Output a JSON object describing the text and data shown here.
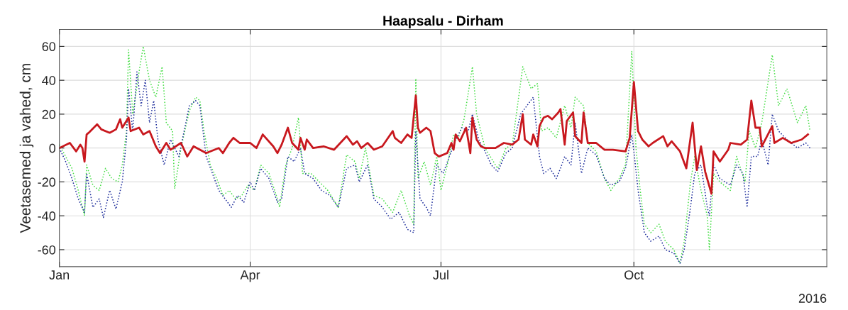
{
  "chart_data": {
    "type": "line",
    "title": "Haapsalu - Dirham",
    "ylabel": "Veetasemed ja vahed, cm",
    "xlim": [
      "2016-01-01",
      "2017-01-01"
    ],
    "ylim": [
      -70,
      70
    ],
    "yticks": [
      -60,
      -40,
      -20,
      0,
      20,
      40,
      60
    ],
    "xticks": [
      {
        "value": "2016-01-01",
        "label": "Jan"
      },
      {
        "value": "2016-04-01",
        "label": "Apr"
      },
      {
        "value": "2016-07-01",
        "label": "Jul"
      },
      {
        "value": "2016-10-01",
        "label": "Oct"
      }
    ],
    "annotations": [
      "2016"
    ],
    "grid": true,
    "marker": "none",
    "series": [
      {
        "color": "#44dd44",
        "line_style": "dotted",
        "x": [
          "2016-01-01",
          "2016-01-04",
          "2016-01-07",
          "2016-01-10",
          "2016-01-13",
          "2016-01-14",
          "2016-01-17",
          "2016-01-20",
          "2016-01-23",
          "2016-01-26",
          "2016-01-29",
          "2016-01-31",
          "2016-02-02",
          "2016-02-03",
          "2016-02-05",
          "2016-02-08",
          "2016-02-10",
          "2016-02-13",
          "2016-02-16",
          "2016-02-19",
          "2016-02-21",
          "2016-02-24",
          "2016-02-25",
          "2016-02-28",
          "2016-03-03",
          "2016-03-06",
          "2016-03-08",
          "2016-03-10",
          "2016-03-13",
          "2016-03-16",
          "2016-03-19",
          "2016-03-22",
          "2016-03-25",
          "2016-03-28",
          "2016-03-31",
          "2016-04-03",
          "2016-04-06",
          "2016-04-10",
          "2016-04-14",
          "2016-04-15",
          "2016-04-18",
          "2016-04-21",
          "2016-04-24",
          "2016-04-26",
          "2016-04-30",
          "2016-05-04",
          "2016-05-08",
          "2016-05-13",
          "2016-05-17",
          "2016-05-21",
          "2016-05-23",
          "2016-05-26",
          "2016-05-30",
          "2016-06-03",
          "2016-06-08",
          "2016-06-12",
          "2016-06-16",
          "2016-06-18",
          "2016-06-19",
          "2016-06-20",
          "2016-06-23",
          "2016-06-26",
          "2016-06-29",
          "2016-07-01",
          "2016-07-04",
          "2016-07-07",
          "2016-07-09",
          "2016-07-12",
          "2016-07-16",
          "2016-07-18",
          "2016-07-22",
          "2016-07-25",
          "2016-07-28",
          "2016-08-01",
          "2016-08-04",
          "2016-08-09",
          "2016-08-13",
          "2016-08-16",
          "2016-08-18",
          "2016-08-21",
          "2016-08-25",
          "2016-08-29",
          "2016-09-01",
          "2016-09-03",
          "2016-09-07",
          "2016-09-09",
          "2016-09-13",
          "2016-09-17",
          "2016-09-20",
          "2016-09-24",
          "2016-09-27",
          "2016-09-30",
          "2016-10-02",
          "2016-10-04",
          "2016-10-06",
          "2016-10-09",
          "2016-10-13",
          "2016-10-16",
          "2016-10-20",
          "2016-10-23",
          "2016-10-25",
          "2016-10-28",
          "2016-10-30",
          "2016-11-02",
          "2016-11-05",
          "2016-11-06",
          "2016-11-08",
          "2016-11-11",
          "2016-11-16",
          "2016-11-19",
          "2016-11-23",
          "2016-11-25",
          "2016-11-28",
          "2016-12-01",
          "2016-12-06",
          "2016-12-09",
          "2016-12-13",
          "2016-12-18",
          "2016-12-22",
          "2016-12-24"
        ],
        "values": [
          2,
          -5,
          -12,
          -25,
          -40,
          -10,
          -22,
          -25,
          -12,
          -18,
          -20,
          -10,
          10,
          58,
          20,
          45,
          60,
          40,
          30,
          48,
          15,
          10,
          -24,
          0,
          22,
          30,
          28,
          10,
          -10,
          -18,
          -28,
          -25,
          -30,
          -28,
          -22,
          -25,
          -10,
          -15,
          -30,
          -35,
          -10,
          0,
          18,
          -15,
          -15,
          -20,
          -25,
          -35,
          -4,
          -8,
          -18,
          0,
          -28,
          -30,
          -38,
          -25,
          -40,
          -45,
          41,
          -18,
          -8,
          -22,
          -5,
          -25,
          -10,
          8,
          5,
          17,
          48,
          20,
          0,
          -6,
          -12,
          0,
          2,
          48,
          35,
          38,
          10,
          12,
          6,
          25,
          12,
          30,
          25,
          3,
          -2,
          -18,
          -25,
          -18,
          -10,
          57,
          0,
          -25,
          -45,
          -50,
          -45,
          -55,
          -60,
          -68,
          -55,
          -20,
          -5,
          -25,
          -40,
          -60,
          -15,
          -20,
          -25,
          -5,
          -20,
          10,
          0,
          15,
          55,
          25,
          35,
          15,
          25,
          10
        ]
      },
      {
        "color": "#1a2a9a",
        "line_style": "dotted",
        "x": [
          "2016-01-01",
          "2016-01-04",
          "2016-01-07",
          "2016-01-10",
          "2016-01-13",
          "2016-01-14",
          "2016-01-17",
          "2016-01-20",
          "2016-01-22",
          "2016-01-25",
          "2016-01-28",
          "2016-01-31",
          "2016-02-02",
          "2016-02-03",
          "2016-02-05",
          "2016-02-07",
          "2016-02-09",
          "2016-02-11",
          "2016-02-13",
          "2016-02-15",
          "2016-02-17",
          "2016-02-20",
          "2016-02-23",
          "2016-02-27",
          "2016-03-03",
          "2016-03-06",
          "2016-03-08",
          "2016-03-11",
          "2016-03-14",
          "2016-03-17",
          "2016-03-20",
          "2016-03-23",
          "2016-03-26",
          "2016-03-29",
          "2016-04-01",
          "2016-04-03",
          "2016-04-06",
          "2016-04-10",
          "2016-04-14",
          "2016-04-16",
          "2016-04-19",
          "2016-04-22",
          "2016-04-25",
          "2016-04-27",
          "2016-05-01",
          "2016-05-05",
          "2016-05-09",
          "2016-05-13",
          "2016-05-17",
          "2016-05-21",
          "2016-05-23",
          "2016-05-27",
          "2016-05-30",
          "2016-06-03",
          "2016-06-07",
          "2016-06-11",
          "2016-06-15",
          "2016-06-18",
          "2016-06-19",
          "2016-06-21",
          "2016-06-24",
          "2016-06-26",
          "2016-06-29",
          "2016-07-02",
          "2016-07-05",
          "2016-07-08",
          "2016-07-11",
          "2016-07-14",
          "2016-07-16",
          "2016-07-19",
          "2016-07-22",
          "2016-07-25",
          "2016-07-28",
          "2016-08-01",
          "2016-08-04",
          "2016-08-08",
          "2016-08-11",
          "2016-08-14",
          "2016-08-17",
          "2016-08-19",
          "2016-08-22",
          "2016-08-25",
          "2016-08-27",
          "2016-08-29",
          "2016-09-01",
          "2016-09-03",
          "2016-09-06",
          "2016-09-09",
          "2016-09-13",
          "2016-09-17",
          "2016-09-20",
          "2016-09-24",
          "2016-09-27",
          "2016-09-30",
          "2016-10-01",
          "2016-10-03",
          "2016-10-06",
          "2016-10-09",
          "2016-10-13",
          "2016-10-16",
          "2016-10-20",
          "2016-10-23",
          "2016-10-25",
          "2016-10-28",
          "2016-10-30",
          "2016-11-02",
          "2016-11-05",
          "2016-11-06",
          "2016-11-08",
          "2016-11-11",
          "2016-11-16",
          "2016-11-19",
          "2016-11-22",
          "2016-11-24",
          "2016-11-26",
          "2016-11-29",
          "2016-12-01",
          "2016-12-04",
          "2016-12-06",
          "2016-12-09",
          "2016-12-13",
          "2016-12-18",
          "2016-12-22",
          "2016-12-24"
        ],
        "values": [
          0,
          -8,
          -18,
          -30,
          -38,
          -15,
          -35,
          -30,
          -41,
          -25,
          -36,
          -20,
          5,
          35,
          10,
          45,
          25,
          40,
          15,
          28,
          5,
          -10,
          5,
          -5,
          25,
          28,
          25,
          -5,
          -15,
          -25,
          -30,
          -35,
          -28,
          -32,
          -20,
          -25,
          -12,
          -18,
          -32,
          -30,
          -5,
          -8,
          0,
          -15,
          -18,
          -25,
          -28,
          -35,
          -12,
          -10,
          -20,
          -10,
          -30,
          -35,
          -42,
          -38,
          -48,
          -50,
          10,
          -30,
          -35,
          -40,
          -10,
          -15,
          -5,
          5,
          12,
          10,
          20,
          5,
          -2,
          -10,
          -14,
          -3,
          0,
          20,
          25,
          30,
          -5,
          -15,
          -12,
          -18,
          -12,
          -5,
          -10,
          15,
          -15,
          0,
          -4,
          -18,
          -22,
          -20,
          -12,
          8,
          -2,
          -25,
          -50,
          -55,
          -52,
          -60,
          -62,
          -68,
          -60,
          -35,
          -15,
          -10,
          -35,
          -40,
          -10,
          -18,
          -22,
          -10,
          -15,
          -35,
          -5,
          -5,
          5,
          -10,
          20,
          10,
          5,
          0,
          3,
          0
        ]
      },
      {
        "color": "#c8181e",
        "line_style": "solid",
        "x": [
          "2016-01-01",
          "2016-01-06",
          "2016-01-09",
          "2016-01-11",
          "2016-01-12",
          "2016-01-13",
          "2016-01-14",
          "2016-01-15",
          "2016-01-19",
          "2016-01-21",
          "2016-01-25",
          "2016-01-28",
          "2016-01-30",
          "2016-01-31",
          "2016-02-03",
          "2016-02-04",
          "2016-02-08",
          "2016-02-10",
          "2016-02-13",
          "2016-02-16",
          "2016-02-18",
          "2016-02-21",
          "2016-02-23",
          "2016-02-28",
          "2016-03-02",
          "2016-03-05",
          "2016-03-08",
          "2016-03-11",
          "2016-03-17",
          "2016-03-19",
          "2016-03-22",
          "2016-03-24",
          "2016-03-27",
          "2016-04-01",
          "2016-04-04",
          "2016-04-07",
          "2016-04-12",
          "2016-04-14",
          "2016-04-16",
          "2016-04-19",
          "2016-04-21",
          "2016-04-24",
          "2016-04-25",
          "2016-04-27",
          "2016-04-28",
          "2016-05-01",
          "2016-05-06",
          "2016-05-11",
          "2016-05-17",
          "2016-05-20",
          "2016-05-22",
          "2016-05-24",
          "2016-05-27",
          "2016-05-30",
          "2016-06-03",
          "2016-06-08",
          "2016-06-09",
          "2016-06-12",
          "2016-06-15",
          "2016-06-17",
          "2016-06-19",
          "2016-06-20",
          "2016-06-21",
          "2016-06-24",
          "2016-06-26",
          "2016-06-28",
          "2016-06-30",
          "2016-07-04",
          "2016-07-06",
          "2016-07-07",
          "2016-07-08",
          "2016-07-10",
          "2016-07-13",
          "2016-07-15",
          "2016-07-16",
          "2016-07-18",
          "2016-07-20",
          "2016-07-22",
          "2016-07-27",
          "2016-07-31",
          "2016-08-04",
          "2016-08-07",
          "2016-08-09",
          "2016-08-10",
          "2016-08-13",
          "2016-08-14",
          "2016-08-16",
          "2016-08-17",
          "2016-08-19",
          "2016-08-21",
          "2016-08-23",
          "2016-08-26",
          "2016-08-27",
          "2016-08-29",
          "2016-08-30",
          "2016-09-02",
          "2016-09-03",
          "2016-09-06",
          "2016-09-07",
          "2016-09-09",
          "2016-09-13",
          "2016-09-17",
          "2016-09-21",
          "2016-09-27",
          "2016-09-29",
          "2016-10-01",
          "2016-10-03",
          "2016-10-05",
          "2016-10-08",
          "2016-10-10",
          "2016-10-15",
          "2016-10-17",
          "2016-10-19",
          "2016-10-23",
          "2016-10-26",
          "2016-10-29",
          "2016-10-31",
          "2016-11-02",
          "2016-11-04",
          "2016-11-07",
          "2016-11-08",
          "2016-11-11",
          "2016-11-15",
          "2016-11-16",
          "2016-11-21",
          "2016-11-24",
          "2016-11-26",
          "2016-11-28",
          "2016-11-30",
          "2016-12-01",
          "2016-12-06",
          "2016-12-07",
          "2016-12-11",
          "2016-12-15",
          "2016-12-20",
          "2016-12-23"
        ],
        "values": [
          0,
          3,
          -2,
          2,
          0,
          -8,
          8,
          9,
          14,
          11,
          9,
          11,
          17,
          12,
          18,
          10,
          12,
          8,
          10,
          1,
          -3,
          3,
          -1,
          3,
          -5,
          1,
          -1,
          -3,
          0,
          -3,
          3,
          6,
          3,
          3,
          0,
          8,
          1,
          -3,
          2,
          12,
          3,
          -1,
          6,
          -1,
          5,
          0,
          1,
          -1,
          7,
          2,
          4,
          0,
          3,
          -1,
          1,
          10,
          6,
          3,
          8,
          6,
          31,
          12,
          9,
          12,
          10,
          -3,
          -5,
          -3,
          3,
          -1,
          8,
          4,
          12,
          -3,
          18,
          5,
          1,
          0,
          0,
          3,
          2,
          5,
          20,
          5,
          2,
          8,
          1,
          13,
          18,
          19,
          17,
          21,
          23,
          2,
          16,
          21,
          7,
          3,
          21,
          3,
          3,
          -1,
          -1,
          -2,
          6,
          39,
          10,
          5,
          1,
          3,
          7,
          1,
          4,
          -2,
          -12,
          15,
          -13,
          1,
          -14,
          -27,
          -2,
          -8,
          -1,
          3,
          2,
          5,
          28,
          12,
          12,
          1,
          13,
          3,
          6,
          3,
          5,
          8
        ]
      }
    ]
  }
}
